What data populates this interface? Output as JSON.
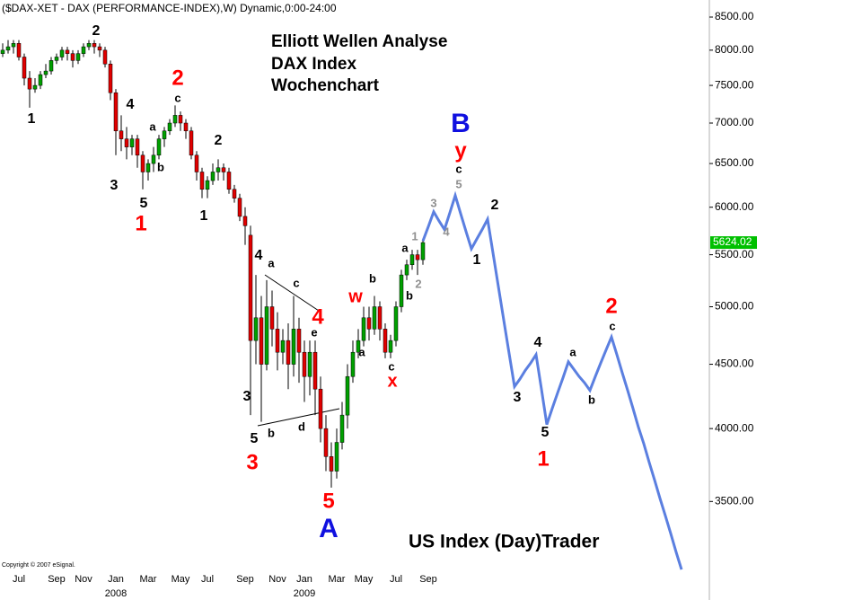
{
  "chart_data": {
    "type": "candlestick",
    "header": "($DAX-XET - DAX (PERFORMANCE-INDEX),W) Dynamic,0:00-24:00",
    "title_lines": [
      "Elliott Wellen Analyse",
      "DAX Index",
      "Wochenchart"
    ],
    "watermark": "US Index (Day)Trader",
    "copyright": "Copyright © 2007 eSignal.",
    "log_scale": true,
    "grid": false,
    "up_color": "#00a000",
    "down_color": "#e00000",
    "ylim": [
      3080,
      8770
    ],
    "yticks": [
      {
        "value": 3500,
        "label": "3500.00"
      },
      {
        "value": 4000,
        "label": "4000.00"
      },
      {
        "value": 4500,
        "label": "4500.00"
      },
      {
        "value": 5000,
        "label": "5000.00"
      },
      {
        "value": 5500,
        "label": "5500.00"
      },
      {
        "value": 6000,
        "label": "6000.00"
      },
      {
        "value": 6500,
        "label": "6500.00"
      },
      {
        "value": 7000,
        "label": "7000.00"
      },
      {
        "value": 7500,
        "label": "7500.00"
      },
      {
        "value": 8000,
        "label": "8000.00"
      },
      {
        "value": 8500,
        "label": "8500.00"
      }
    ],
    "categories": [
      null,
      null,
      null,
      "Jul",
      null,
      null,
      null,
      null,
      null,
      null,
      "Sep",
      null,
      null,
      null,
      null,
      "Nov",
      null,
      null,
      null,
      null,
      null,
      "Jan",
      null,
      null,
      null,
      null,
      null,
      "Mar",
      null,
      null,
      null,
      null,
      null,
      "May",
      null,
      null,
      null,
      null,
      "Jul",
      null,
      null,
      null,
      null,
      null,
      null,
      "Sep",
      null,
      null,
      null,
      null,
      null,
      "Nov",
      null,
      null,
      null,
      null,
      "Jan",
      null,
      null,
      null,
      null,
      null,
      "Mar",
      null,
      null,
      null,
      null,
      "May",
      null,
      null,
      null,
      null,
      null,
      "Jul",
      null,
      null,
      null,
      null,
      null,
      "Sep",
      null,
      null,
      null,
      null,
      null,
      null,
      null,
      null,
      null,
      null,
      null,
      null,
      null,
      null,
      null,
      null,
      null,
      null,
      null,
      null,
      null,
      null,
      null,
      null,
      null,
      null,
      null,
      null,
      null,
      null,
      null,
      null,
      null,
      null,
      null,
      null,
      null,
      null,
      null,
      null,
      null,
      null,
      null,
      null,
      null,
      null,
      null,
      null,
      null,
      null,
      null
    ],
    "years": [
      "2008",
      "2009"
    ],
    "open": [
      7950,
      8000,
      8050,
      8100,
      7900,
      7600,
      7450,
      7500,
      7650,
      7700,
      7850,
      7900,
      8000,
      7950,
      7850,
      7950,
      8050,
      8100,
      8050,
      8000,
      7800,
      7400,
      6900,
      6800,
      6700,
      6800,
      6600,
      6400,
      6500,
      6600,
      6800,
      6900,
      7000,
      7100,
      7000,
      6900,
      6600,
      6400,
      6200,
      6300,
      6400,
      6450,
      6400,
      6200,
      6100,
      5900,
      5700,
      4700,
      4900,
      4500,
      5000,
      4800,
      4600,
      4700,
      4500,
      4800,
      4600,
      4400,
      4600,
      4300,
      4000,
      3800,
      3700,
      3900,
      4100,
      4400,
      4600,
      4700,
      4900,
      4800,
      5000,
      4800,
      4600,
      4700,
      5000,
      5300,
      5400,
      5500,
      5450,
      null,
      null,
      null,
      null,
      null,
      null,
      null,
      null,
      null,
      null,
      null,
      null,
      null,
      null,
      null,
      null,
      null,
      null,
      null,
      null,
      null,
      null,
      null,
      null,
      null,
      null,
      null,
      null,
      null,
      null,
      null,
      null,
      null,
      null,
      null,
      null,
      null,
      null,
      null,
      null,
      null,
      null,
      null,
      null,
      null,
      null,
      null,
      null,
      null,
      null,
      null,
      null
    ],
    "high": [
      8100,
      8150,
      8150,
      8150,
      7950,
      7700,
      7600,
      7700,
      7800,
      7900,
      7950,
      8050,
      8050,
      8000,
      8000,
      8100,
      8150,
      8150,
      8100,
      8050,
      7850,
      7450,
      7100,
      6950,
      6850,
      6850,
      6650,
      6550,
      6700,
      6850,
      6950,
      7050,
      7230,
      7150,
      7050,
      6950,
      6650,
      6450,
      6350,
      6500,
      6550,
      6500,
      6450,
      6250,
      6150,
      6000,
      5800,
      5300,
      5100,
      5250,
      5150,
      4950,
      4800,
      4850,
      5100,
      4900,
      4700,
      4700,
      4700,
      4400,
      4100,
      3900,
      4000,
      4200,
      4500,
      4700,
      4800,
      5000,
      5000,
      5100,
      5050,
      4850,
      4750,
      5050,
      5350,
      5450,
      5550,
      5550,
      5660,
      null,
      null,
      null,
      null,
      null,
      null,
      null,
      null,
      null,
      null,
      null,
      null,
      null,
      null,
      null,
      null,
      null,
      null,
      null,
      null,
      null,
      null,
      null,
      null,
      null,
      null,
      null,
      null,
      null,
      null,
      null,
      null,
      null,
      null,
      null,
      null,
      null,
      null,
      null,
      null,
      null,
      null,
      null,
      null,
      null,
      null,
      null,
      null,
      null,
      null,
      null,
      null
    ],
    "low": [
      7900,
      7950,
      7950,
      7850,
      7500,
      7200,
      7400,
      7450,
      7600,
      7650,
      7800,
      7850,
      7850,
      7750,
      7800,
      7900,
      8000,
      7950,
      7900,
      7750,
      7300,
      6600,
      6650,
      6550,
      6600,
      6450,
      6200,
      6300,
      6400,
      6550,
      6700,
      6850,
      6950,
      6900,
      6800,
      6550,
      6300,
      6100,
      6100,
      6250,
      6300,
      6300,
      6150,
      6050,
      5850,
      5600,
      4100,
      4500,
      4050,
      4450,
      4650,
      4450,
      4500,
      4300,
      4400,
      4350,
      4200,
      4250,
      4100,
      3900,
      3700,
      3590,
      3650,
      3850,
      4000,
      4350,
      4550,
      4650,
      4700,
      4750,
      4700,
      4550,
      4550,
      4650,
      4950,
      5250,
      5350,
      5300,
      5400,
      null,
      null,
      null,
      null,
      null,
      null,
      null,
      null,
      null,
      null,
      null,
      null,
      null,
      null,
      null,
      null,
      null,
      null,
      null,
      null,
      null,
      null,
      null,
      null,
      null,
      null,
      null,
      null,
      null,
      null,
      null,
      null,
      null,
      null,
      null,
      null,
      null,
      null,
      null,
      null,
      null,
      null,
      null,
      null,
      null,
      null,
      null,
      null,
      null,
      null,
      null,
      null
    ],
    "close": [
      8000,
      8050,
      8100,
      7900,
      7600,
      7450,
      7500,
      7650,
      7700,
      7850,
      7900,
      8000,
      7950,
      7850,
      7950,
      8050,
      8100,
      8050,
      8000,
      7800,
      7400,
      6900,
      6800,
      6700,
      6800,
      6600,
      6400,
      6500,
      6600,
      6800,
      6900,
      7000,
      7100,
      7000,
      6900,
      6600,
      6400,
      6200,
      6300,
      6400,
      6450,
      6400,
      6200,
      6100,
      5900,
      5800,
      4700,
      4900,
      4500,
      5000,
      4800,
      4600,
      4700,
      4500,
      4800,
      4600,
      4400,
      4600,
      4300,
      4000,
      3800,
      3700,
      3900,
      4100,
      4400,
      4600,
      4700,
      4900,
      4800,
      5000,
      4800,
      4600,
      4700,
      5000,
      5300,
      5400,
      5500,
      5450,
      5624.02,
      null,
      null,
      null,
      null,
      null,
      null,
      null,
      null,
      null,
      null,
      null,
      null,
      null,
      null,
      null,
      null,
      null,
      null,
      null,
      null,
      null,
      null,
      null,
      null,
      null,
      null,
      null,
      null,
      null,
      null,
      null,
      null,
      null,
      null,
      null,
      null,
      null,
      null,
      null,
      null,
      null,
      null,
      null,
      null,
      null,
      null,
      null,
      null,
      null,
      null,
      null,
      null
    ],
    "last_price_color": "#00c000",
    "projection": {
      "color": "#5b7fe0",
      "values": [
        null,
        null,
        null,
        null,
        null,
        null,
        null,
        null,
        null,
        null,
        null,
        null,
        null,
        null,
        null,
        null,
        null,
        null,
        null,
        null,
        null,
        null,
        null,
        null,
        null,
        null,
        null,
        null,
        null,
        null,
        null,
        null,
        null,
        null,
        null,
        null,
        null,
        null,
        null,
        null,
        null,
        null,
        null,
        null,
        null,
        null,
        null,
        null,
        null,
        null,
        null,
        null,
        null,
        null,
        null,
        null,
        null,
        null,
        null,
        null,
        null,
        null,
        null,
        null,
        null,
        null,
        null,
        null,
        null,
        null,
        null,
        null,
        null,
        null,
        null,
        null,
        null,
        null,
        5640,
        5790,
        5950,
        5850,
        5760,
        5940,
        6130,
        5930,
        5740,
        5560,
        5660,
        5760,
        5870,
        5520,
        5190,
        4880,
        4590,
        4320,
        4380,
        4450,
        4510,
        4580,
        4300,
        4030,
        4150,
        4270,
        4390,
        4520,
        4460,
        4400,
        4350,
        4290,
        4400,
        4510,
        4620,
        4730,
        4580,
        4430,
        4290,
        4150,
        4010,
        3890,
        3760,
        3640,
        3520,
        3410,
        3300,
        3190,
        3090,
        null,
        null,
        null,
        null
      ]
    },
    "wave_labels": [
      "1",
      "2",
      "4",
      "a",
      "b",
      "3",
      "5",
      "2",
      "c",
      "1",
      "2",
      "1",
      "4",
      "a",
      "c",
      "4",
      "e",
      "3",
      "5",
      "b",
      "d",
      "3",
      "5",
      "A",
      "w",
      "a",
      "b",
      "c",
      "x",
      "a",
      "1",
      "b",
      "2",
      "3",
      "4",
      "5",
      "c",
      "y",
      "B",
      "2",
      "1",
      "3",
      "4",
      "5",
      "1",
      "a",
      "b",
      "2",
      "c"
    ]
  }
}
